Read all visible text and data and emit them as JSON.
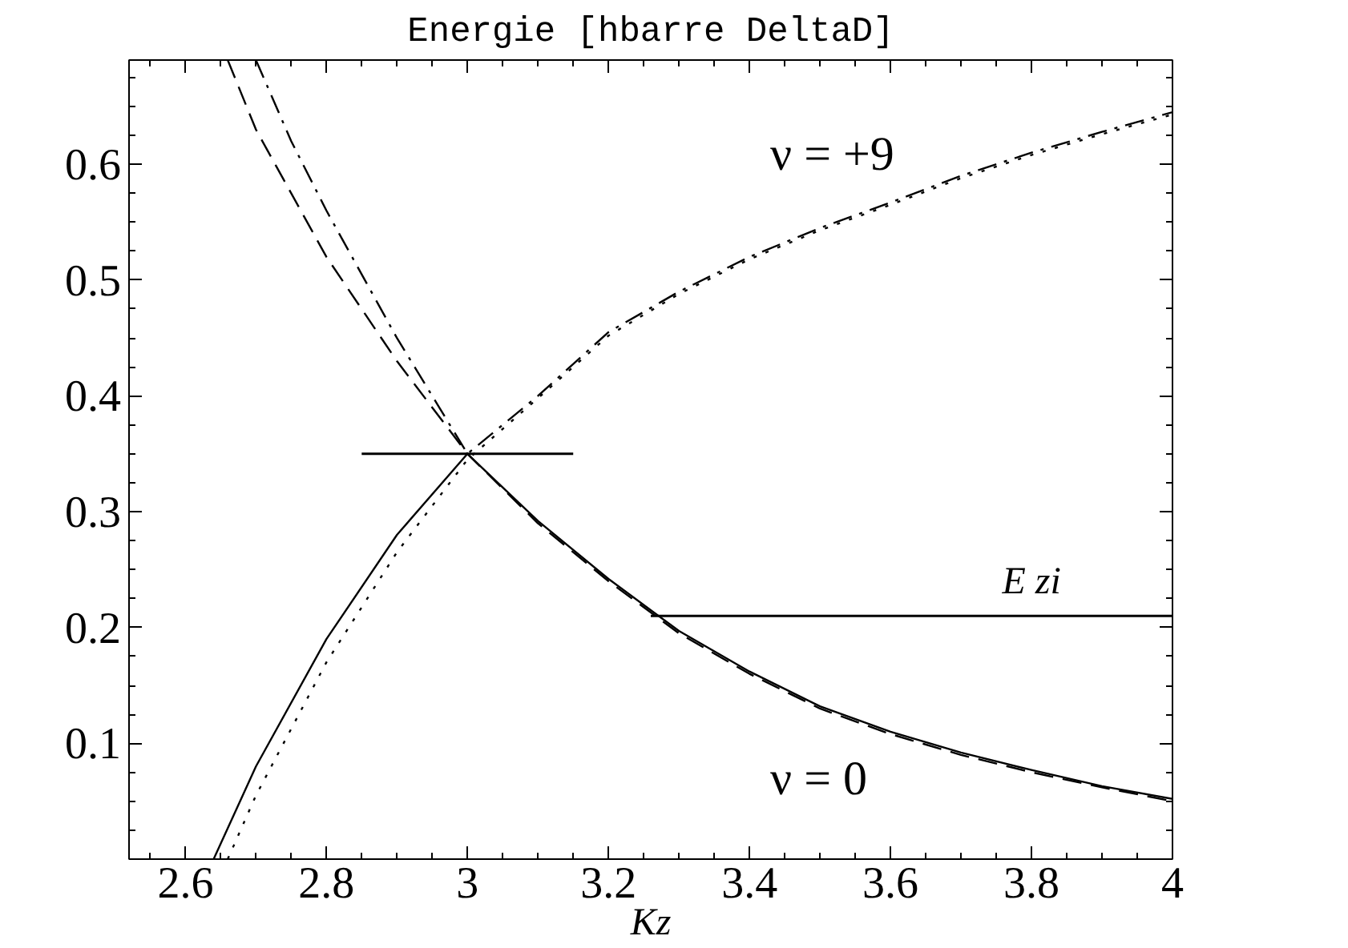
{
  "chart_data": {
    "type": "line",
    "title": "Energie [hbarre DeltaD]",
    "xlabel": "Kz",
    "xlim": [
      2.52,
      4
    ],
    "ylim": [
      0,
      0.69
    ],
    "xticks": [
      2.6,
      2.8,
      3,
      3.2,
      3.4,
      3.6,
      3.8,
      4
    ],
    "yticks": [
      0.1,
      0.2,
      0.3,
      0.4,
      0.5,
      0.6
    ],
    "grid": false,
    "marker": "none",
    "series": [
      {
        "color": "#000000",
        "line_style": "dashed",
        "x": [
          2.66,
          2.7,
          2.8,
          2.9,
          3.0,
          3.1,
          3.2,
          3.3,
          3.4,
          3.5,
          3.6,
          3.7,
          3.8,
          3.9,
          4.0
        ],
        "values": [
          0.69,
          0.63,
          0.52,
          0.43,
          0.35,
          0.29,
          0.24,
          0.195,
          0.16,
          0.13,
          0.108,
          0.09,
          0.075,
          0.062,
          0.05
        ]
      },
      {
        "color": "#000000",
        "line_style": "dashdot",
        "x": [
          2.7,
          2.75,
          2.8,
          2.9,
          3.0,
          3.1,
          3.2,
          3.3,
          3.4,
          3.5,
          3.6,
          3.7,
          3.8,
          3.9,
          4.0
        ],
        "values": [
          0.69,
          0.62,
          0.56,
          0.45,
          0.35,
          0.4,
          0.455,
          0.49,
          0.52,
          0.545,
          0.567,
          0.59,
          0.61,
          0.628,
          0.645
        ]
      },
      {
        "color": "#000000",
        "line_style": "solid",
        "x": [
          2.64,
          2.7,
          2.8,
          2.9,
          3.0,
          3.1,
          3.2,
          3.3,
          3.4,
          3.5,
          3.6,
          3.7,
          3.8,
          3.9,
          4.0
        ],
        "values": [
          0.0,
          0.08,
          0.19,
          0.28,
          0.35,
          0.292,
          0.242,
          0.197,
          0.162,
          0.132,
          0.11,
          0.092,
          0.077,
          0.063,
          0.052
        ]
      },
      {
        "color": "#000000",
        "line_style": "dotted",
        "x": [
          2.66,
          2.7,
          2.8,
          2.9,
          3.0,
          3.1,
          3.2,
          3.3,
          3.4,
          3.5,
          3.6,
          3.7,
          3.8,
          3.9,
          4.0
        ],
        "values": [
          0.0,
          0.055,
          0.17,
          0.265,
          0.345,
          0.398,
          0.452,
          0.488,
          0.518,
          0.543,
          0.565,
          0.588,
          0.608,
          0.626,
          0.643
        ]
      },
      {
        "color": "#000000",
        "line_style": "solid",
        "x": [
          2.85,
          3.15
        ],
        "values": [
          0.35,
          0.35
        ]
      },
      {
        "color": "#000000",
        "line_style": "solid",
        "x": [
          3.26,
          4.0
        ],
        "values": [
          0.21,
          0.21
        ]
      }
    ],
    "annotations": [
      "ν = +9",
      "ν = 0",
      {
        "text": "E zi",
        "x": 3.8,
        "y": 0.21
      }
    ]
  }
}
